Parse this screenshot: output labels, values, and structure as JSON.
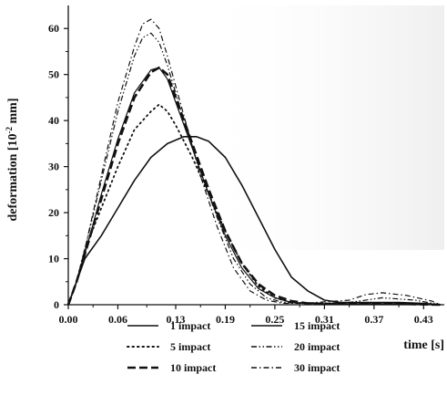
{
  "chart_data": {
    "type": "line",
    "title": "",
    "xlabel": "time [s]",
    "ylabel_main": "deformation [10",
    "ylabel_sup": "-2",
    "ylabel_unit": " mm]",
    "xlim": [
      0.0,
      0.455
    ],
    "ylim": [
      0,
      65
    ],
    "xticks": [
      0.0,
      0.06,
      0.13,
      0.19,
      0.25,
      0.31,
      0.37,
      0.43
    ],
    "xtick_labels": [
      "0.00",
      "0.06",
      "0.13",
      "0.19",
      "0.25",
      "0.31",
      "0.37",
      "0.43"
    ],
    "yticks": [
      0,
      10,
      20,
      30,
      40,
      50,
      60
    ],
    "ytick_labels": [
      "0",
      "10",
      "20",
      "30",
      "40",
      "50",
      "60"
    ],
    "grid": false,
    "legend_position": "bottom",
    "series": [
      {
        "name": "1 impact",
        "style": "solid",
        "width": 1.6,
        "x": [
          0.0,
          0.01,
          0.02,
          0.04,
          0.06,
          0.08,
          0.1,
          0.12,
          0.14,
          0.155,
          0.17,
          0.19,
          0.21,
          0.23,
          0.25,
          0.27,
          0.29,
          0.31,
          0.33,
          0.35,
          0.37,
          0.4,
          0.43,
          0.45
        ],
        "y": [
          0,
          5,
          10,
          15,
          21,
          27,
          32,
          35,
          36.5,
          36.5,
          35.5,
          32,
          26,
          19,
          12,
          6,
          3,
          1,
          0.5,
          0.5,
          0.5,
          0.5,
          0.3,
          0
        ]
      },
      {
        "name": "5 impact",
        "style": "dotted",
        "width": 1.8,
        "x": [
          0.0,
          0.01,
          0.02,
          0.04,
          0.06,
          0.08,
          0.1,
          0.11,
          0.12,
          0.13,
          0.15,
          0.17,
          0.19,
          0.21,
          0.23,
          0.25,
          0.27,
          0.29,
          0.31,
          0.35,
          0.4,
          0.45
        ],
        "y": [
          0,
          5,
          12,
          21,
          30,
          38,
          42,
          43.5,
          42,
          39,
          32,
          24,
          16,
          9,
          4,
          1.5,
          0.5,
          0.3,
          0.2,
          0.2,
          0.2,
          0
        ]
      },
      {
        "name": "10 impact",
        "style": "dashed",
        "width": 2.6,
        "x": [
          0.0,
          0.01,
          0.02,
          0.04,
          0.06,
          0.08,
          0.1,
          0.11,
          0.12,
          0.13,
          0.15,
          0.17,
          0.19,
          0.21,
          0.23,
          0.25,
          0.27,
          0.29,
          0.31,
          0.35,
          0.4,
          0.45
        ],
        "y": [
          0,
          5,
          11,
          23,
          35,
          45,
          50.5,
          51.5,
          50,
          45,
          35,
          25,
          16,
          9,
          4.5,
          2,
          0.8,
          0.3,
          0.2,
          0.2,
          0.2,
          0
        ]
      },
      {
        "name": "15 impact",
        "style": "solid",
        "width": 1.2,
        "x": [
          0.0,
          0.01,
          0.02,
          0.04,
          0.06,
          0.08,
          0.1,
          0.11,
          0.12,
          0.13,
          0.15,
          0.17,
          0.19,
          0.21,
          0.23,
          0.25,
          0.27,
          0.29,
          0.31,
          0.35,
          0.4,
          0.45
        ],
        "y": [
          0,
          5,
          11,
          24,
          36,
          46,
          51,
          51.5,
          49,
          44,
          34,
          24,
          15,
          8,
          3.5,
          1.5,
          0.5,
          0.3,
          0.2,
          0.2,
          0.2,
          0
        ]
      },
      {
        "name": "20 impact",
        "style": "dashdotdot",
        "width": 1.2,
        "x": [
          0.0,
          0.01,
          0.02,
          0.04,
          0.06,
          0.08,
          0.09,
          0.1,
          0.11,
          0.12,
          0.14,
          0.16,
          0.18,
          0.2,
          0.22,
          0.24,
          0.26,
          0.28,
          0.3,
          0.34,
          0.38,
          0.42,
          0.45
        ],
        "y": [
          0,
          5,
          12,
          27,
          42,
          54,
          58,
          59,
          57,
          52,
          40,
          29,
          19,
          10,
          4.5,
          1.5,
          0.5,
          0.3,
          0.3,
          0.5,
          1.5,
          1.0,
          0
        ]
      },
      {
        "name": "30 impact",
        "style": "dashdot",
        "width": 1.2,
        "x": [
          0.0,
          0.01,
          0.02,
          0.04,
          0.06,
          0.08,
          0.09,
          0.1,
          0.11,
          0.12,
          0.14,
          0.16,
          0.18,
          0.2,
          0.22,
          0.24,
          0.26,
          0.28,
          0.3,
          0.34,
          0.36,
          0.38,
          0.41,
          0.44,
          0.45
        ],
        "y": [
          0,
          5,
          12,
          28,
          44,
          56,
          61,
          62,
          60,
          54,
          41,
          28,
          17,
          8,
          3,
          1,
          0.3,
          0.3,
          0.5,
          1.0,
          2.2,
          2.6,
          2.0,
          0.8,
          0
        ]
      }
    ]
  }
}
